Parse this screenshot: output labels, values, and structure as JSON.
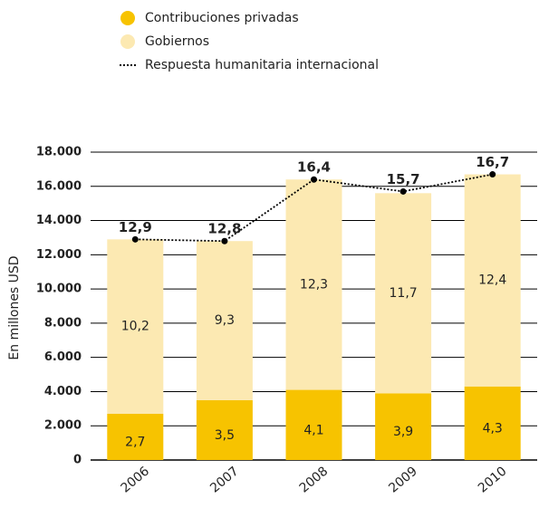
{
  "chart_data": {
    "type": "bar",
    "stacked": true,
    "y_label": "En millones USD",
    "categories": [
      "2006",
      "2007",
      "2008",
      "2009",
      "2010"
    ],
    "series": [
      {
        "name": "Contribuciones privadas",
        "color": "#f7c300",
        "values": [
          2700,
          3500,
          4100,
          3900,
          4300
        ],
        "value_labels": [
          "2,7",
          "3,5",
          "4,1",
          "3,9",
          "4,3"
        ]
      },
      {
        "name": "Gobiernos",
        "color": "#fce9b2",
        "values": [
          10200,
          9300,
          12300,
          11700,
          12400
        ],
        "value_labels": [
          "10,2",
          "9,3",
          "12,3",
          "11,7",
          "12,4"
        ]
      },
      {
        "name": "Respuesta humanitaria internacional",
        "type": "line",
        "color": "#000000",
        "values": [
          12900,
          12800,
          16400,
          15700,
          16700
        ],
        "value_labels": [
          "12,9",
          "12,8",
          "16,4",
          "15,7",
          "16,7"
        ]
      }
    ],
    "ylim": [
      0,
      18000
    ],
    "yticks": [
      {
        "value": 0,
        "label": "0"
      },
      {
        "value": 2000,
        "label": "2.000"
      },
      {
        "value": 4000,
        "label": "4.000"
      },
      {
        "value": 6000,
        "label": "6.000"
      },
      {
        "value": 8000,
        "label": "8.000"
      },
      {
        "value": 10000,
        "label": "10.000"
      },
      {
        "value": 12000,
        "label": "12.000"
      },
      {
        "value": 14000,
        "label": "14.000"
      },
      {
        "value": 16000,
        "label": "16.000"
      },
      {
        "value": 18000,
        "label": "18.000"
      }
    ],
    "grid": true
  }
}
